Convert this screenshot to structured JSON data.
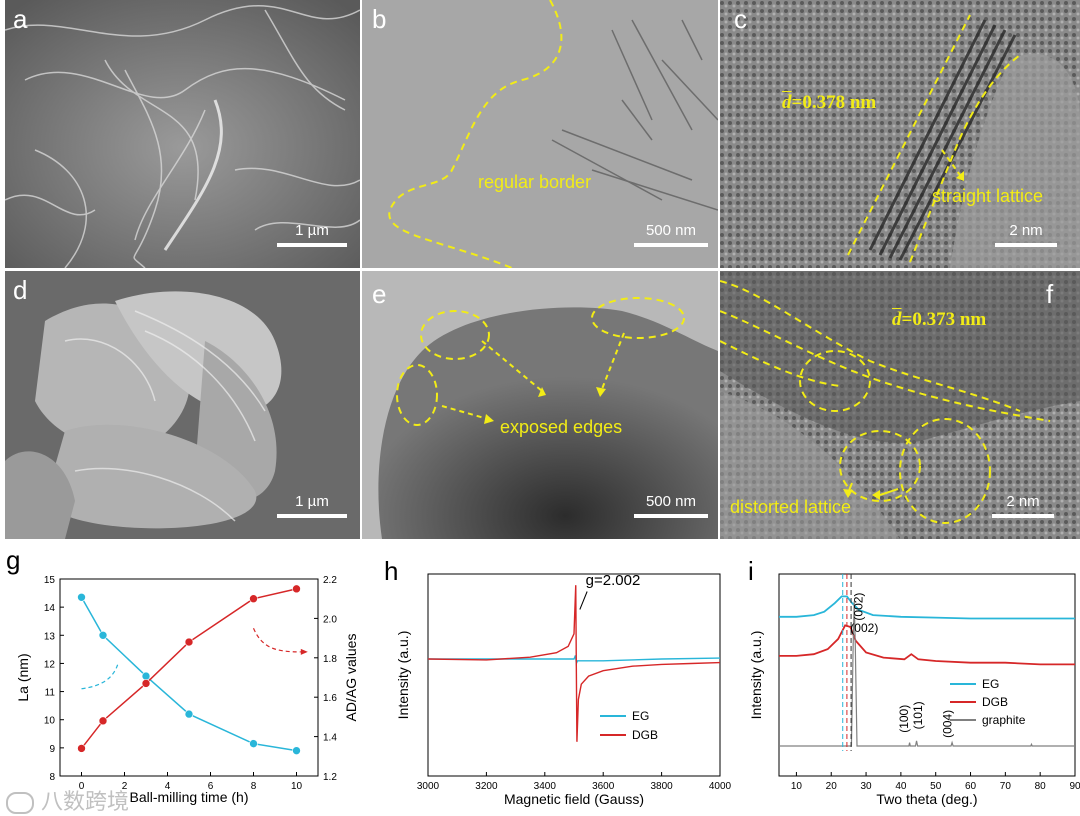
{
  "panels": {
    "a": {
      "label": "a",
      "scale": "1 µm"
    },
    "b": {
      "label": "b",
      "scale": "500 nm",
      "annotation": "regular border"
    },
    "c": {
      "label": "c",
      "scale": "2 nm",
      "d_value": "=0.378 nm",
      "annotation": "straight lattice"
    },
    "d": {
      "label": "d",
      "scale": "1 µm"
    },
    "e": {
      "label": "e",
      "scale": "500 nm",
      "annotation": "exposed edges"
    },
    "f": {
      "label": "f",
      "scale": "2 nm",
      "d_value": "=0.373 nm",
      "annotation": "distorted lattice"
    }
  },
  "d_symbol": "d",
  "colors": {
    "eg": "#29b6d9",
    "dgb": "#d62728",
    "graphite": "#808080",
    "annotation": "#f2ec16"
  },
  "watermark": "八数跨境",
  "chart_data": [
    {
      "panel": "g",
      "type": "line",
      "xlabel": "Ball-milling time (h)",
      "ylabel_left": "La (nm)",
      "ylabel_right": "AD/AG values",
      "xlim": [
        -1,
        11
      ],
      "ylim_left": [
        8,
        15
      ],
      "ylim_right": [
        1.2,
        2.2
      ],
      "xticks": [
        0,
        2,
        4,
        6,
        8,
        10
      ],
      "yticks_left": [
        8,
        9,
        10,
        11,
        12,
        13,
        14,
        15
      ],
      "yticks_right": [
        1.2,
        1.4,
        1.6,
        1.8,
        2.0,
        2.2
      ],
      "x": [
        0,
        1,
        3,
        5,
        8,
        10
      ],
      "series": [
        {
          "name": "La",
          "axis": "left",
          "values": [
            14.35,
            13.0,
            11.55,
            10.2,
            9.15,
            8.9
          ]
        },
        {
          "name": "AD/AG",
          "axis": "right",
          "values": [
            1.34,
            1.48,
            1.67,
            1.88,
            2.1,
            2.15
          ]
        }
      ]
    },
    {
      "panel": "h",
      "type": "line",
      "xlabel": "Magnetic field (Gauss)",
      "ylabel": "Intensity (a.u.)",
      "xlim": [
        3000,
        4000
      ],
      "xticks": [
        3000,
        3200,
        3400,
        3600,
        3800,
        4000
      ],
      "annotation": "g=2.002",
      "series": [
        {
          "name": "EG",
          "x": [
            3000,
            3200,
            3400,
            3490,
            3500,
            3505,
            3508,
            3512,
            3520,
            3600,
            3800,
            4000
          ],
          "values": [
            0.0,
            0.0,
            0.0,
            0.0,
            0.0,
            0.04,
            -0.05,
            -0.02,
            -0.02,
            -0.02,
            0.0,
            0.01
          ]
        },
        {
          "name": "DGB",
          "x": [
            3000,
            3200,
            3350,
            3440,
            3480,
            3500,
            3506,
            3508,
            3510,
            3515,
            3525,
            3550,
            3600,
            3700,
            3800,
            3900,
            4000
          ],
          "values": [
            0.0,
            -0.01,
            0.02,
            0.07,
            0.14,
            0.28,
            0.82,
            -0.1,
            -0.92,
            -0.45,
            -0.28,
            -0.19,
            -0.13,
            -0.08,
            -0.06,
            -0.05,
            -0.04
          ]
        }
      ]
    },
    {
      "panel": "i",
      "type": "line",
      "xlabel": "Two theta (deg.)",
      "ylabel": "Intensity (a.u.)",
      "xlim": [
        5,
        90
      ],
      "xticks": [
        10,
        20,
        30,
        40,
        50,
        60,
        70,
        80,
        90
      ],
      "peak_labels": [
        "(002)",
        "(002)",
        "(100)",
        "(101)",
        "(004)"
      ],
      "series": [
        {
          "name": "EG",
          "x": [
            5,
            10,
            15,
            18,
            21,
            23,
            24.5,
            26,
            28,
            32,
            40,
            50,
            60,
            70,
            80,
            90
          ],
          "values": [
            0.76,
            0.76,
            0.77,
            0.79,
            0.84,
            0.88,
            0.88,
            0.84,
            0.8,
            0.77,
            0.76,
            0.755,
            0.75,
            0.75,
            0.75,
            0.75
          ]
        },
        {
          "name": "DGB",
          "x": [
            5,
            10,
            15,
            19,
            22,
            24,
            25.5,
            27,
            30,
            35,
            41,
            43,
            45,
            50,
            60,
            70,
            80,
            90
          ],
          "values": [
            0.53,
            0.53,
            0.54,
            0.57,
            0.63,
            0.71,
            0.7,
            0.62,
            0.55,
            0.52,
            0.51,
            0.54,
            0.51,
            0.5,
            0.49,
            0.49,
            0.48,
            0.48
          ]
        },
        {
          "name": "graphite",
          "x": [
            5,
            25.8,
            26.3,
            26.6,
            26.9,
            27.4,
            42.3,
            42.5,
            42.7,
            44.2,
            44.5,
            44.8,
            54.4,
            54.7,
            55.0,
            77.3,
            77.5,
            77.7,
            90
          ],
          "values": [
            0.0,
            0.0,
            0.6,
            0.85,
            0.6,
            0.0,
            0.0,
            0.02,
            0.0,
            0.0,
            0.03,
            0.0,
            0.0,
            0.02,
            0.0,
            0.0,
            0.01,
            0.0,
            0.0
          ]
        }
      ]
    }
  ]
}
